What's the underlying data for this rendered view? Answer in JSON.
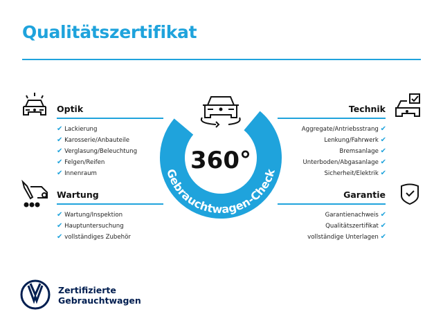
{
  "title": "Qualitätszertifikat",
  "badge": {
    "number": "360°",
    "ring_text": "Gebrauchtwagen-Check",
    "color": "#1fa3dc"
  },
  "sections": {
    "optik": {
      "heading": "Optik",
      "items": [
        "Lackierung",
        "Karosserie/Anbauteile",
        "Verglasung/Beleuchtung",
        "Felgen/Reifen",
        "Innenraum"
      ]
    },
    "wartung": {
      "heading": "Wartung",
      "items": [
        "Wartung/Inspektion",
        "Hauptuntersuchung",
        "vollständiges Zubehör"
      ]
    },
    "technik": {
      "heading": "Technik",
      "items": [
        "Aggregate/Antriebsstrang",
        "Lenkung/Fahrwerk",
        "Bremsanlage",
        "Unterboden/Abgasanlage",
        "Sicherheit/Elektrik"
      ]
    },
    "garantie": {
      "heading": "Garantie",
      "items": [
        "Garantienachweis",
        "Qualitätszertifikat",
        "vollständige Unterlagen"
      ]
    }
  },
  "check": "✔",
  "brand": {
    "line1": "Zertifizierte",
    "line2": "Gebrauchtwagen",
    "color": "#001e50"
  }
}
